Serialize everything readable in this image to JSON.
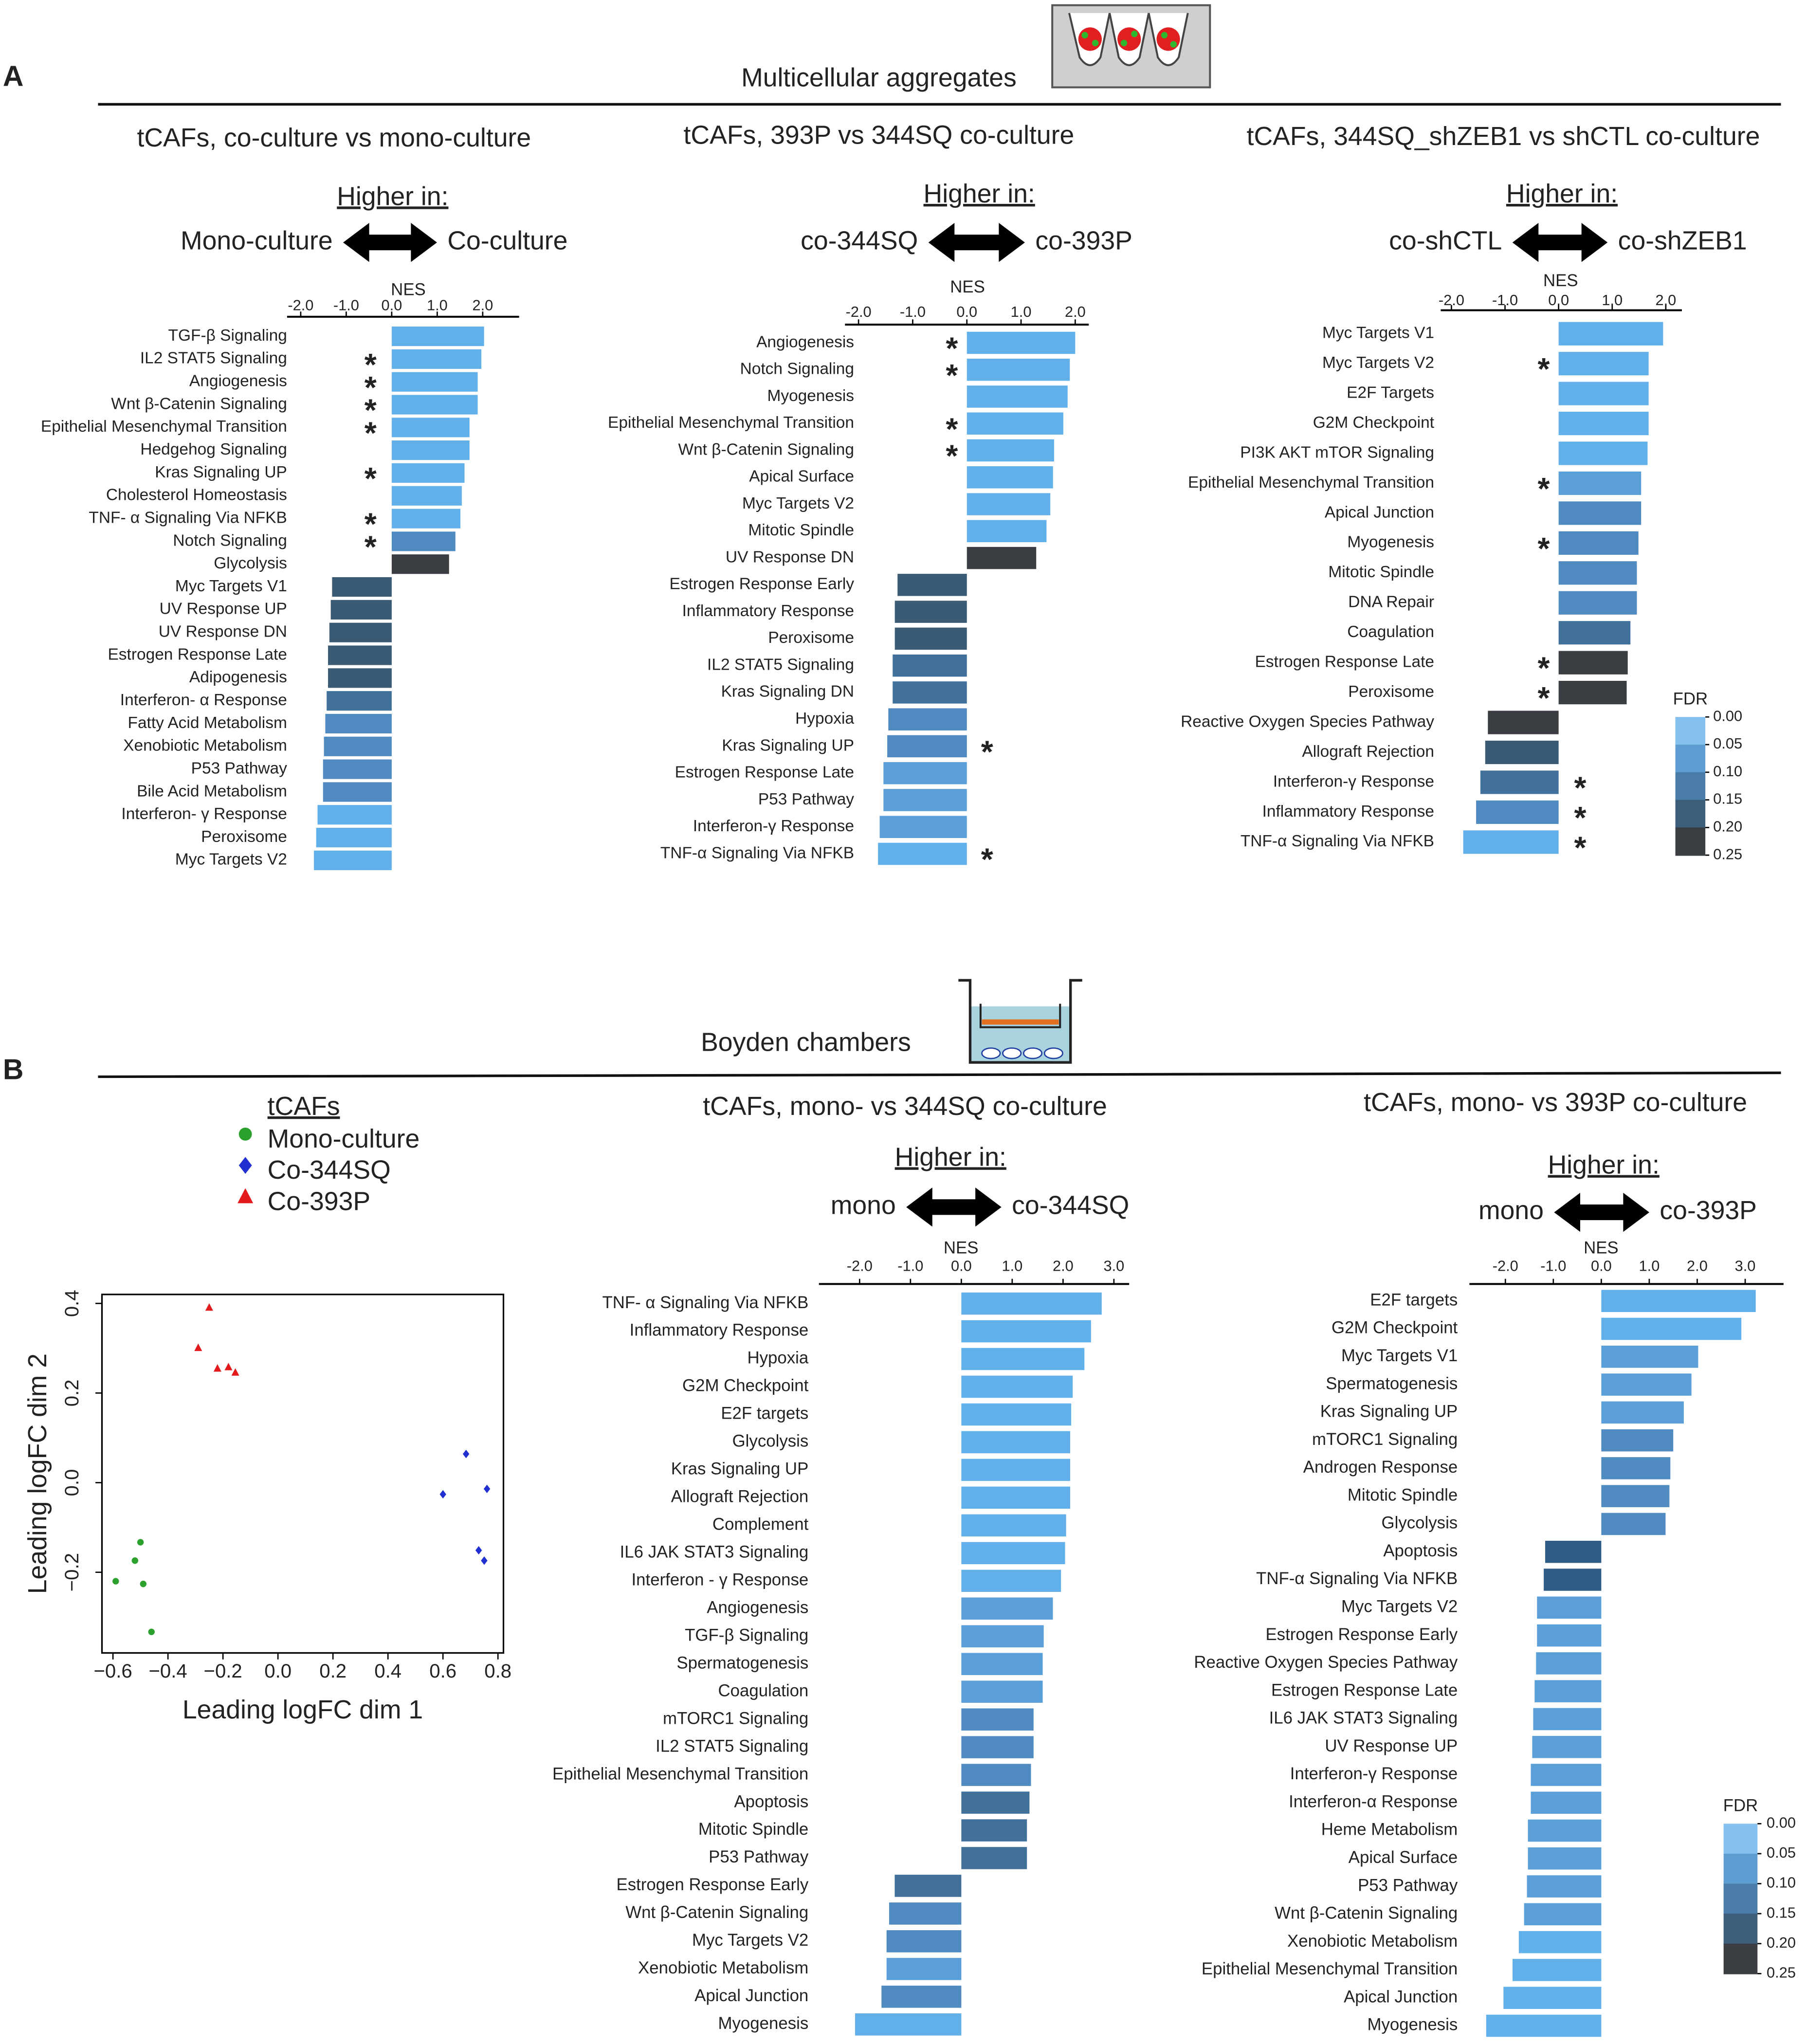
{
  "figure": {
    "panel_a": "A",
    "panel_b": "B",
    "section_a": "Multicellular aggregates",
    "section_b": "Boyden chambers"
  },
  "chart_data": [
    {
      "type": "bar",
      "orientation": "horizontal",
      "title": "tCAFs, co-culture vs mono-culture",
      "higher_in": "Higher in:",
      "left_group": "Mono-culture",
      "right_group": "Co-culture",
      "xlabel": "NES",
      "xlim": [
        -2.3,
        2.8
      ],
      "xticks": [
        {
          "value": -2,
          "label": "-2.0"
        },
        {
          "value": -1,
          "label": "-1.0"
        },
        {
          "value": 0,
          "label": "0.0"
        },
        {
          "value": 1,
          "label": "1.0"
        },
        {
          "value": 2,
          "label": "2.0"
        }
      ],
      "categories": [
        "TGF-β Signaling",
        "IL2 STAT5 Signaling",
        "Angiogenesis",
        "Wnt β-Catenin Signaling",
        "Epithelial Mesenchymal Transition",
        "Hedgehog Signaling",
        "Kras Signaling UP",
        "Cholesterol Homeostasis",
        "TNF- α Signaling Via NFKB",
        "Notch Signaling",
        "Glycolysis",
        "Myc Targets V1",
        "UV Response UP",
        "UV Response DN",
        "Estrogen Response Late",
        "Adipogenesis",
        "Interferon- α Response",
        "Fatty Acid Metabolism",
        "Xenobiotic Metabolism",
        "P53 Pathway",
        "Bile Acid Metabolism",
        "Interferon- γ Response",
        "Peroxisome",
        "Myc Targets V2"
      ],
      "values": [
        2.03,
        1.97,
        1.89,
        1.89,
        1.71,
        1.71,
        1.6,
        1.54,
        1.51,
        1.4,
        1.26,
        -1.31,
        -1.34,
        -1.37,
        -1.4,
        -1.4,
        -1.43,
        -1.46,
        -1.49,
        -1.51,
        -1.51,
        -1.63,
        -1.66,
        -1.71
      ],
      "colors": [
        "#62b0ea",
        "#62b0ea",
        "#62b0ea",
        "#62b0ea",
        "#62b0ea",
        "#62b0ea",
        "#62b0ea",
        "#62b0ea",
        "#62b0ea",
        "#4f8bc0",
        "#3a3d41",
        "#3b5a74",
        "#3b5a74",
        "#3b5a74",
        "#3b5a74",
        "#3b5a74",
        "#41719b",
        "#4f8bc0",
        "#4f8bc0",
        "#4f8bc0",
        "#4f8bc0",
        "#62b0ea",
        "#62b0ea",
        "#62b0ea"
      ],
      "star": "*",
      "starred": [
        false,
        true,
        true,
        true,
        true,
        false,
        true,
        false,
        true,
        true,
        false,
        false,
        false,
        false,
        false,
        false,
        false,
        false,
        false,
        false,
        false,
        false,
        false,
        false
      ]
    },
    {
      "type": "bar",
      "orientation": "horizontal",
      "title": "tCAFs, 393P vs 344SQ co-culture",
      "higher_in": "Higher in:",
      "left_group": "co-344SQ",
      "right_group": "co-393P",
      "xlabel": "NES",
      "xlim": [
        -2.25,
        2.25
      ],
      "xticks": [
        {
          "value": -2,
          "label": "-2.0"
        },
        {
          "value": -1,
          "label": "-1.0"
        },
        {
          "value": 0,
          "label": "0.0"
        },
        {
          "value": 1,
          "label": "1.0"
        },
        {
          "value": 2,
          "label": "2.0"
        }
      ],
      "categories": [
        "Angiogenesis",
        "Notch Signaling",
        "Myogenesis",
        "Epithelial Mesenchymal Transition",
        "Wnt β-Catenin Signaling",
        "Apical Surface",
        "Myc Targets V2",
        "Mitotic Spindle",
        "UV Response DN",
        "Estrogen Response Early",
        "Inflammatory Response",
        "Peroxisome",
        "IL2 STAT5 Signaling",
        "Kras Signaling DN",
        "Hypoxia",
        "Kras Signaling UP",
        "Estrogen Response Late",
        "P53 Pathway",
        "Interferon-γ Response",
        "TNF-α Signaling Via NFKB"
      ],
      "values": [
        2.0,
        1.9,
        1.86,
        1.78,
        1.61,
        1.59,
        1.54,
        1.47,
        1.28,
        -1.28,
        -1.33,
        -1.33,
        -1.37,
        -1.37,
        -1.45,
        -1.47,
        -1.54,
        -1.54,
        -1.61,
        -1.64
      ],
      "colors": [
        "#62b0ea",
        "#62b0ea",
        "#62b0ea",
        "#62b0ea",
        "#62b0ea",
        "#62b0ea",
        "#62b0ea",
        "#62b0ea",
        "#3a3d41",
        "#3b5a74",
        "#3b5a74",
        "#3b5a74",
        "#41719b",
        "#41719b",
        "#4f8bc0",
        "#4f8bc0",
        "#5a9fd8",
        "#5a9fd8",
        "#5a9fd8",
        "#62b0ea"
      ],
      "star": "*",
      "starred": [
        true,
        true,
        false,
        true,
        true,
        false,
        false,
        false,
        false,
        false,
        false,
        false,
        false,
        false,
        false,
        true,
        false,
        false,
        false,
        true
      ]
    },
    {
      "type": "bar",
      "orientation": "horizontal",
      "title": "tCAFs, 344SQ_shZEB1 vs shCTL co-culture",
      "higher_in": "Higher in:",
      "left_group": "co-shCTL",
      "right_group": "co-shZEB1",
      "xlabel": "NES",
      "xlim": [
        -2.2,
        2.3
      ],
      "xticks": [
        {
          "value": -2,
          "label": "-2.0"
        },
        {
          "value": -1,
          "label": "-1.0"
        },
        {
          "value": 0,
          "label": "0.0"
        },
        {
          "value": 1,
          "label": "1.0"
        },
        {
          "value": 2,
          "label": "2.0"
        }
      ],
      "categories": [
        "Myc Targets V1",
        "Myc Targets V2",
        "E2F Targets",
        "G2M Checkpoint",
        "PI3K AKT mTOR Signaling",
        "Epithelial Mesenchymal Transition",
        "Apical Junction",
        "Myogenesis",
        "Mitotic Spindle",
        "DNA Repair",
        "Coagulation",
        "Estrogen Response Late",
        "Peroxisome",
        "Reactive Oxygen Species Pathway",
        "Allograft Rejection",
        "Interferon-γ Response",
        "Inflammatory Response",
        "TNF-α Signaling Via NFKB"
      ],
      "values": [
        1.95,
        1.68,
        1.68,
        1.68,
        1.66,
        1.54,
        1.54,
        1.49,
        1.46,
        1.46,
        1.34,
        1.29,
        1.27,
        -1.32,
        -1.37,
        -1.46,
        -1.54,
        -1.78
      ],
      "colors": [
        "#62b0ea",
        "#62b0ea",
        "#62b0ea",
        "#62b0ea",
        "#62b0ea",
        "#5a9fd8",
        "#4f8bc0",
        "#4f8bc0",
        "#4f8bc0",
        "#4f8bc0",
        "#41719b",
        "#3a3d41",
        "#3a3d41",
        "#3a3d41",
        "#3b5a74",
        "#41719b",
        "#4f8bc0",
        "#62b0ea"
      ],
      "star": "*",
      "starred": [
        false,
        true,
        false,
        false,
        false,
        true,
        false,
        true,
        false,
        false,
        false,
        true,
        true,
        false,
        false,
        true,
        true,
        true
      ],
      "colorbar": {
        "title": "FDR",
        "colors": [
          "#84c1ef",
          "#5d9dd2",
          "#4a7ca8",
          "#3d5e7a",
          "#3a3d41"
        ],
        "ticks": [
          {
            "value": 0,
            "label": "0.00"
          },
          {
            "value": 0.05,
            "label": "0.05"
          },
          {
            "value": 0.1,
            "label": "0.10"
          },
          {
            "value": 0.15,
            "label": "0.15"
          },
          {
            "value": 0.2,
            "label": "0.20"
          },
          {
            "value": 0.25,
            "label": "0.25"
          }
        ]
      }
    },
    {
      "type": "scatter",
      "xlabel": "Leading logFC dim 1",
      "ylabel": "Leading logFC dim 2",
      "legend_title": "tCAFs",
      "xlim": [
        -0.64,
        0.82
      ],
      "ylim": [
        -0.38,
        0.42
      ],
      "xticks": [
        {
          "value": -0.6,
          "label": "−0.6"
        },
        {
          "value": -0.4,
          "label": "−0.4"
        },
        {
          "value": -0.2,
          "label": "−0.2"
        },
        {
          "value": 0,
          "label": "0.0"
        },
        {
          "value": 0.2,
          "label": "0.2"
        },
        {
          "value": 0.4,
          "label": "0.4"
        },
        {
          "value": 0.6,
          "label": "0.6"
        },
        {
          "value": 0.8,
          "label": "0.8"
        }
      ],
      "yticks": [
        {
          "value": -0.2,
          "label": "−0.2"
        },
        {
          "value": 0,
          "label": "0.0"
        },
        {
          "value": 0.2,
          "label": "0.2"
        },
        {
          "value": 0.4,
          "label": "0.4"
        }
      ],
      "series": [
        {
          "name": "Mono-culture",
          "color": "#2ca02c",
          "marker": "circle",
          "x": [
            -0.5,
            -0.52,
            -0.59,
            -0.49,
            -0.46
          ],
          "y": [
            -0.133,
            -0.174,
            -0.22,
            -0.226,
            -0.333
          ]
        },
        {
          "name": "Co-344SQ",
          "color": "#1f2fd0",
          "marker": "diamond",
          "x": [
            0.684,
            0.6,
            0.76,
            0.73,
            0.75
          ],
          "y": [
            0.064,
            -0.026,
            -0.014,
            -0.151,
            -0.174
          ]
        },
        {
          "name": "Co-393P",
          "color": "#e31a1c",
          "marker": "triangle",
          "x": [
            -0.25,
            -0.29,
            -0.22,
            -0.18,
            -0.155
          ],
          "y": [
            0.391,
            0.301,
            0.255,
            0.258,
            0.246
          ]
        }
      ]
    },
    {
      "type": "bar",
      "orientation": "horizontal",
      "title": "tCAFs, mono- vs 344SQ co-culture",
      "higher_in": "Higher in:",
      "left_group": "mono",
      "right_group": "co-344SQ",
      "xlabel": "NES",
      "xlim": [
        -2.8,
        3.3
      ],
      "xticks": [
        {
          "value": -2,
          "label": "-2.0"
        },
        {
          "value": -1,
          "label": "-1.0"
        },
        {
          "value": 0,
          "label": "0.0"
        },
        {
          "value": 1,
          "label": "1.0"
        },
        {
          "value": 2,
          "label": "2.0"
        },
        {
          "value": 3,
          "label": "3.0"
        }
      ],
      "categories": [
        "TNF- α Signaling Via NFKB",
        "Inflammatory Response",
        "Hypoxia",
        "G2M Checkpoint",
        "E2F targets",
        "Glycolysis",
        "Kras Signaling UP",
        "Allograft Rejection",
        "Complement",
        "IL6 JAK STAT3 Signaling",
        "Interferon - γ Response",
        "Angiogenesis",
        "TGF-β Signaling",
        "Spermatogenesis",
        "Coagulation",
        "mTORC1 Signaling",
        "IL2 STAT5 Signaling",
        "Epithelial Mesenchymal Transition",
        "Apoptosis",
        "Mitotic Spindle",
        "P53 Pathway",
        "Estrogen Response Early",
        "Wnt β-Catenin Signaling",
        "Myc Targets V2",
        "Xenobiotic Metabolism",
        "Apical Junction",
        "Myogenesis"
      ],
      "values": [
        2.76,
        2.55,
        2.42,
        2.19,
        2.16,
        2.14,
        2.14,
        2.14,
        2.06,
        2.04,
        1.96,
        1.8,
        1.62,
        1.6,
        1.6,
        1.42,
        1.42,
        1.37,
        1.34,
        1.29,
        1.29,
        -1.31,
        -1.42,
        -1.47,
        -1.47,
        -1.57,
        -2.09
      ],
      "colors": [
        "#62b0ea",
        "#62b0ea",
        "#62b0ea",
        "#62b0ea",
        "#62b0ea",
        "#62b0ea",
        "#62b0ea",
        "#62b0ea",
        "#62b0ea",
        "#62b0ea",
        "#62b0ea",
        "#5a9fd8",
        "#5a9fd8",
        "#5a9fd8",
        "#5a9fd8",
        "#4f8bc0",
        "#4f8bc0",
        "#4f8bc0",
        "#41719b",
        "#41719b",
        "#41719b",
        "#41719b",
        "#4f8bc0",
        "#4f8bc0",
        "#5a9fd8",
        "#4f8bc0",
        "#62b0ea"
      ]
    },
    {
      "type": "bar",
      "orientation": "horizontal",
      "title": "tCAFs, mono- vs 393P co-culture",
      "higher_in": "Higher in:",
      "left_group": "mono",
      "right_group": "co-393P",
      "xlabel": "NES",
      "xlim": [
        -2.75,
        3.8
      ],
      "xticks": [
        {
          "value": -2,
          "label": "-2.0"
        },
        {
          "value": -1,
          "label": "-1.0"
        },
        {
          "value": 0,
          "label": "0.0"
        },
        {
          "value": 1,
          "label": "1.0"
        },
        {
          "value": 2,
          "label": "2.0"
        },
        {
          "value": 3,
          "label": "3.0"
        }
      ],
      "categories": [
        "E2F targets",
        "G2M Checkpoint",
        "Myc Targets V1",
        "Spermatogenesis",
        "Kras Signaling UP",
        "mTORC1 Signaling",
        "Androgen Response",
        "Mitotic Spindle",
        "Glycolysis",
        "Apoptosis",
        "TNF-α Signaling Via NFKB",
        "Myc Targets V2",
        "Estrogen Response Early",
        "Reactive Oxygen Species Pathway",
        "Estrogen Response Late",
        "IL6 JAK STAT3 Signaling",
        "UV Response UP",
        "Interferon-γ Response",
        "Interferon-α Response",
        "Heme Metabolism",
        "Apical Surface",
        "P53 Pathway",
        "Wnt β-Catenin Signaling",
        "Xenobiotic Metabolism",
        "Epithelial Mesenchymal Transition",
        "Apical Junction",
        "Myogenesis"
      ],
      "values": [
        3.22,
        2.92,
        2.02,
        1.88,
        1.72,
        1.5,
        1.44,
        1.42,
        1.34,
        -1.17,
        -1.2,
        -1.34,
        -1.34,
        -1.36,
        -1.39,
        -1.42,
        -1.44,
        -1.47,
        -1.47,
        -1.53,
        -1.53,
        -1.55,
        -1.61,
        -1.72,
        -1.85,
        -2.04,
        -2.4
      ],
      "colors": [
        "#62b0ea",
        "#62b0ea",
        "#5a9fd8",
        "#5a9fd8",
        "#5a9fd8",
        "#4f8bc0",
        "#4f8bc0",
        "#4f8bc0",
        "#4f8bc0",
        "#305d88",
        "#305d88",
        "#5a9fd8",
        "#5a9fd8",
        "#5a9fd8",
        "#5a9fd8",
        "#5a9fd8",
        "#5a9fd8",
        "#5a9fd8",
        "#5a9fd8",
        "#5a9fd8",
        "#5a9fd8",
        "#5a9fd8",
        "#5a9fd8",
        "#62b0ea",
        "#62b0ea",
        "#62b0ea",
        "#62b0ea"
      ],
      "colorbar": {
        "title": "FDR",
        "colors": [
          "#84c1ef",
          "#5d9dd2",
          "#4a7ca8",
          "#3d5e7a",
          "#3a3d41"
        ],
        "ticks": [
          {
            "value": 0,
            "label": "0.00"
          },
          {
            "value": 0.05,
            "label": "0.05"
          },
          {
            "value": 0.1,
            "label": "0.10"
          },
          {
            "value": 0.15,
            "label": "0.15"
          },
          {
            "value": 0.2,
            "label": "0.20"
          },
          {
            "value": 0.25,
            "label": "0.25"
          }
        ]
      }
    }
  ]
}
